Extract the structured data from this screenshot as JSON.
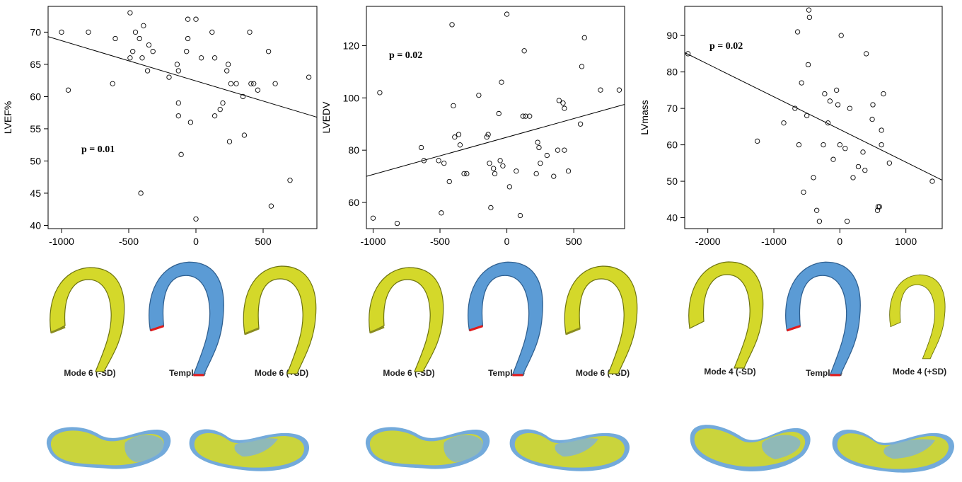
{
  "chart_data": [
    {
      "type": "scatter",
      "ylabel": "LVEF%",
      "xlim": [
        -1100,
        900
      ],
      "ylim": [
        39.5,
        74
      ],
      "xticks": [
        -1000,
        -500,
        0,
        500
      ],
      "yticks": [
        40,
        45,
        50,
        55,
        60,
        65,
        70
      ],
      "annotation": "p = 0.01",
      "trend": {
        "x": [
          -1100,
          900
        ],
        "y": [
          69.3,
          56.8
        ]
      },
      "points": [
        [
          -1000,
          70
        ],
        [
          -950,
          61
        ],
        [
          -800,
          70
        ],
        [
          -620,
          62
        ],
        [
          -600,
          69
        ],
        [
          -490,
          73
        ],
        [
          -490,
          66
        ],
        [
          -470,
          67
        ],
        [
          -450,
          70
        ],
        [
          -420,
          69
        ],
        [
          -400,
          66
        ],
        [
          -390,
          71
        ],
        [
          -360,
          64
        ],
        [
          -350,
          68
        ],
        [
          -320,
          67
        ],
        [
          -200,
          63
        ],
        [
          -140,
          65
        ],
        [
          -130,
          64
        ],
        [
          -130,
          59
        ],
        [
          -130,
          57
        ],
        [
          -110,
          51
        ],
        [
          -70,
          67
        ],
        [
          -60,
          72
        ],
        [
          -60,
          69
        ],
        [
          -40,
          56
        ],
        [
          0,
          72
        ],
        [
          0,
          41
        ],
        [
          40,
          66
        ],
        [
          120,
          70
        ],
        [
          140,
          66
        ],
        [
          140,
          57
        ],
        [
          180,
          58
        ],
        [
          200,
          59
        ],
        [
          230,
          64
        ],
        [
          240,
          65
        ],
        [
          250,
          53
        ],
        [
          260,
          62
        ],
        [
          300,
          62
        ],
        [
          350,
          60
        ],
        [
          360,
          54
        ],
        [
          400,
          70
        ],
        [
          410,
          62
        ],
        [
          430,
          62
        ],
        [
          460,
          61
        ],
        [
          540,
          67
        ],
        [
          560,
          43
        ],
        [
          590,
          62
        ],
        [
          700,
          47
        ],
        [
          840,
          63
        ],
        [
          -410,
          45
        ]
      ]
    },
    {
      "type": "scatter",
      "ylabel": "LVEDV",
      "xlim": [
        -1050,
        880
      ],
      "ylim": [
        50,
        135
      ],
      "xticks": [
        -1000,
        -500,
        0,
        500
      ],
      "yticks": [
        60,
        80,
        100,
        120
      ],
      "annotation": "p = 0.02",
      "trend": {
        "x": [
          -1050,
          880
        ],
        "y": [
          70,
          97.5
        ]
      },
      "points": [
        [
          -1000,
          54
        ],
        [
          -950,
          102
        ],
        [
          -820,
          52
        ],
        [
          -640,
          81
        ],
        [
          -620,
          76
        ],
        [
          -510,
          76
        ],
        [
          -490,
          56
        ],
        [
          -470,
          75
        ],
        [
          -430,
          68
        ],
        [
          -410,
          128
        ],
        [
          -400,
          97
        ],
        [
          -390,
          85
        ],
        [
          -360,
          86
        ],
        [
          -350,
          82
        ],
        [
          -320,
          71
        ],
        [
          -300,
          71
        ],
        [
          -210,
          101
        ],
        [
          -150,
          85
        ],
        [
          -140,
          86
        ],
        [
          -130,
          75
        ],
        [
          -120,
          58
        ],
        [
          -100,
          73
        ],
        [
          -90,
          71
        ],
        [
          -60,
          94
        ],
        [
          -50,
          76
        ],
        [
          -40,
          106
        ],
        [
          -30,
          74
        ],
        [
          0,
          132
        ],
        [
          20,
          66
        ],
        [
          70,
          72
        ],
        [
          100,
          55
        ],
        [
          120,
          93
        ],
        [
          130,
          118
        ],
        [
          140,
          93
        ],
        [
          170,
          93
        ],
        [
          220,
          71
        ],
        [
          230,
          83
        ],
        [
          240,
          81
        ],
        [
          250,
          75
        ],
        [
          300,
          78
        ],
        [
          350,
          70
        ],
        [
          380,
          80
        ],
        [
          390,
          99
        ],
        [
          420,
          98
        ],
        [
          430,
          96
        ],
        [
          430,
          80
        ],
        [
          460,
          72
        ],
        [
          550,
          90
        ],
        [
          560,
          112
        ],
        [
          580,
          123
        ],
        [
          700,
          103
        ],
        [
          840,
          103
        ]
      ]
    },
    {
      "type": "scatter",
      "ylabel": "LVmass",
      "xlim": [
        -2350,
        1550
      ],
      "ylim": [
        37,
        98
      ],
      "xticks": [
        -2000,
        -1000,
        0,
        1000
      ],
      "yticks": [
        40,
        50,
        60,
        70,
        80,
        90
      ],
      "annotation": "p = 0.02",
      "trend": {
        "x": [
          -2350,
          1550
        ],
        "y": [
          85.3,
          50.3
        ]
      },
      "points": [
        [
          -2300,
          85
        ],
        [
          -1250,
          61
        ],
        [
          -850,
          66
        ],
        [
          -680,
          70
        ],
        [
          -640,
          91
        ],
        [
          -620,
          60
        ],
        [
          -580,
          77
        ],
        [
          -550,
          47
        ],
        [
          -500,
          68
        ],
        [
          -480,
          82
        ],
        [
          -470,
          97
        ],
        [
          -460,
          95
        ],
        [
          -400,
          51
        ],
        [
          -350,
          42
        ],
        [
          -310,
          39
        ],
        [
          -250,
          60
        ],
        [
          -230,
          74
        ],
        [
          -180,
          66
        ],
        [
          -150,
          72
        ],
        [
          -100,
          56
        ],
        [
          -50,
          75
        ],
        [
          -30,
          71
        ],
        [
          0,
          60
        ],
        [
          20,
          90
        ],
        [
          80,
          59
        ],
        [
          110,
          39
        ],
        [
          150,
          70
        ],
        [
          200,
          51
        ],
        [
          280,
          54
        ],
        [
          350,
          58
        ],
        [
          380,
          53
        ],
        [
          400,
          85
        ],
        [
          490,
          67
        ],
        [
          500,
          71
        ],
        [
          570,
          42
        ],
        [
          580,
          43
        ],
        [
          600,
          43
        ],
        [
          630,
          60
        ],
        [
          630,
          64
        ],
        [
          660,
          74
        ],
        [
          750,
          55
        ],
        [
          1400,
          50
        ]
      ]
    }
  ],
  "shapes": {
    "labels": [
      "Mode 6 (-SD)",
      "Template",
      "Mode 6 (+SD)",
      "Mode 6 (-SD)",
      "Template",
      "Mode 6 (+SD)",
      "Mode 4 (-SD)",
      "Template",
      "Mode 4 (+SD)"
    ],
    "colors": {
      "mode": "#d4d82a",
      "template": "#5b9bd5",
      "cut": "#e21b1b",
      "outline": "#6e7410"
    }
  }
}
